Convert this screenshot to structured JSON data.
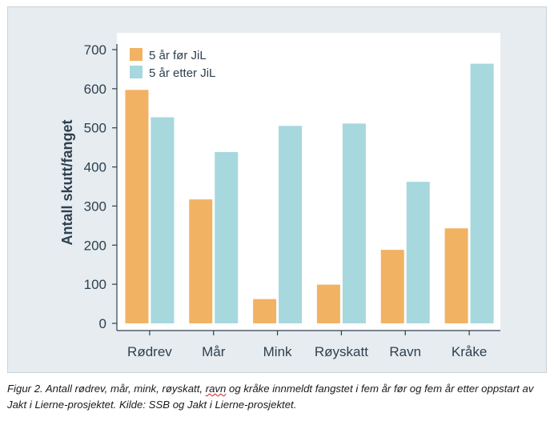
{
  "chart_data": {
    "type": "bar",
    "title": "",
    "xlabel": "",
    "ylabel": "Antall skutt/fanget",
    "ylim": [
      0,
      700
    ],
    "yticks": [
      0,
      100,
      200,
      300,
      400,
      500,
      600,
      700
    ],
    "categories": [
      "Rødrev",
      "Mår",
      "Mink",
      "Røyskatt",
      "Ravn",
      "Kråke"
    ],
    "series": [
      {
        "name": "5 år før JiL",
        "color": "#f2b263",
        "values": [
          597,
          317,
          62,
          99,
          188,
          243
        ]
      },
      {
        "name": "5 år etter JiL",
        "color": "#a6d8de",
        "values": [
          527,
          438,
          505,
          511,
          362,
          664
        ]
      }
    ],
    "legend": "top-left",
    "grid": false
  },
  "caption": {
    "before": "Figur 2. Antall rødrev, mår, mink, røyskatt, ",
    "flagged": "ravn",
    "after": " og kråke innmeldt fangstet i fem år før og fem år etter oppstart av Jakt i Lierne-prosjektet. Kilde: SSB og Jakt i Lierne-prosjektet."
  }
}
